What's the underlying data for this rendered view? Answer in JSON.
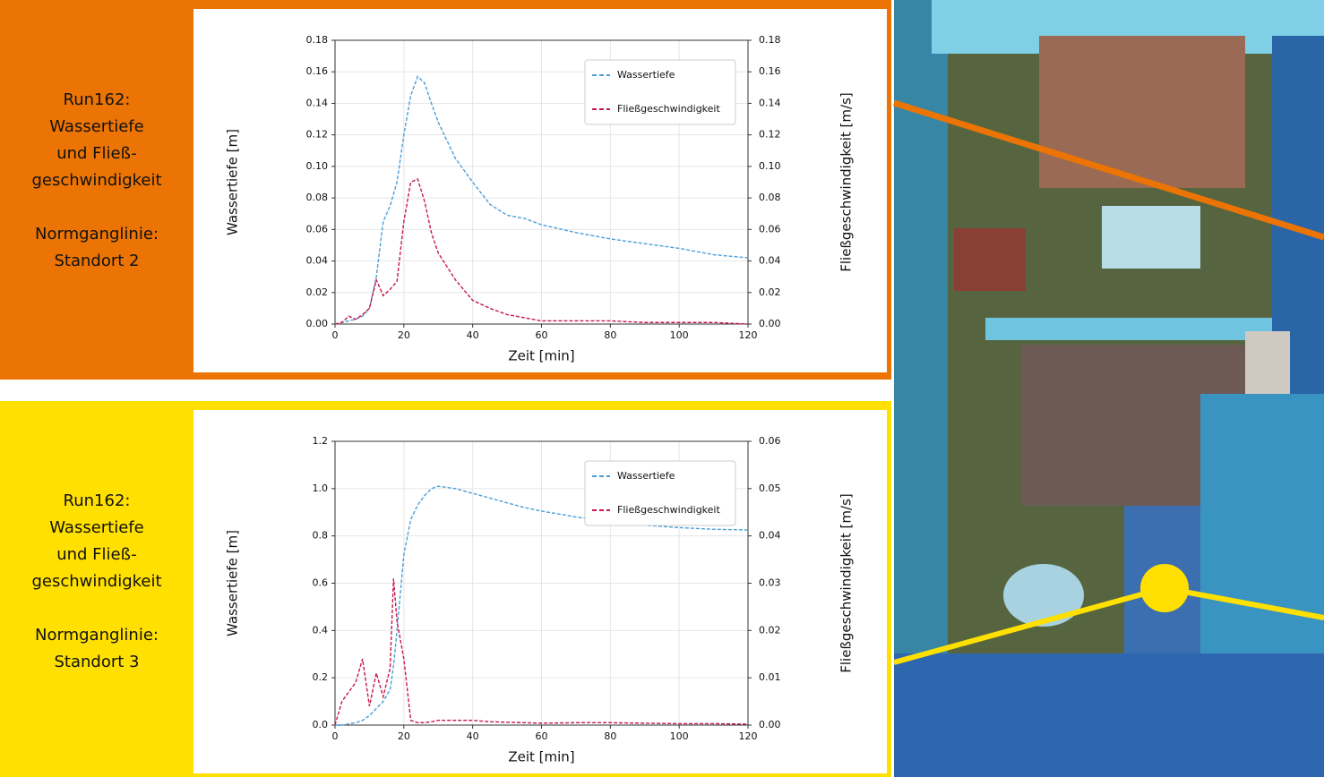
{
  "chart_data": [
    {
      "type": "line",
      "panel_title": [
        "Run162:",
        "Wassertiefe",
        "und Fließ-",
        "geschwindigkeit"
      ],
      "panel_subtitle": [
        "Normganglinie:",
        "Standort 2"
      ],
      "x_label": "Zeit [min]",
      "y_label": "Wassertiefe [m]",
      "y2_label": "Fließgeschwindigkeit [m/s]",
      "x": [
        0,
        2,
        4,
        6,
        8,
        10,
        12,
        14,
        16,
        18,
        20,
        22,
        24,
        26,
        28,
        30,
        35,
        40,
        45,
        50,
        55,
        60,
        70,
        80,
        90,
        100,
        110,
        120
      ],
      "series": [
        {
          "name": "Wassertiefe",
          "color": "#4a9fd8",
          "values": [
            0,
            0.001,
            0.002,
            0.003,
            0.005,
            0.01,
            0.03,
            0.065,
            0.075,
            0.09,
            0.12,
            0.145,
            0.157,
            0.153,
            0.14,
            0.128,
            0.105,
            0.09,
            0.076,
            0.069,
            0.067,
            0.063,
            0.058,
            0.054,
            0.051,
            0.048,
            0.044,
            0.042
          ]
        },
        {
          "name": "Fließgeschwindigkeit",
          "color": "#c8174a",
          "axis": "y2",
          "values": [
            0,
            0.001,
            0.005,
            0.003,
            0.006,
            0.01,
            0.028,
            0.018,
            0.022,
            0.027,
            0.065,
            0.09,
            0.092,
            0.078,
            0.058,
            0.045,
            0.028,
            0.015,
            0.01,
            0.006,
            0.004,
            0.002,
            0.002,
            0.002,
            0.001,
            0.001,
            0.001,
            0
          ]
        }
      ],
      "xlim": [
        0,
        120
      ],
      "xticks": [
        0,
        20,
        40,
        60,
        80,
        100,
        120
      ],
      "ylim": [
        0,
        0.18
      ],
      "yticks": [
        {
          "value": 0,
          "label": "0.00"
        },
        {
          "value": 0.02,
          "label": "0.02"
        },
        {
          "value": 0.04,
          "label": "0.04"
        },
        {
          "value": 0.06,
          "label": "0.06"
        },
        {
          "value": 0.08,
          "label": "0.08"
        },
        {
          "value": 0.1,
          "label": "0.10"
        },
        {
          "value": 0.12,
          "label": "0.12"
        },
        {
          "value": 0.14,
          "label": "0.14"
        },
        {
          "value": 0.16,
          "label": "0.16"
        },
        {
          "value": 0.18,
          "label": "0.18"
        }
      ],
      "y2lim": [
        0,
        0.18
      ],
      "y2ticks": [
        {
          "value": 0,
          "label": "0.00"
        },
        {
          "value": 0.02,
          "label": "0.02"
        },
        {
          "value": 0.04,
          "label": "0.04"
        },
        {
          "value": 0.06,
          "label": "0.06"
        },
        {
          "value": 0.08,
          "label": "0.08"
        },
        {
          "value": 0.1,
          "label": "0.10"
        },
        {
          "value": 0.12,
          "label": "0.12"
        },
        {
          "value": 0.14,
          "label": "0.14"
        },
        {
          "value": 0.16,
          "label": "0.16"
        },
        {
          "value": 0.18,
          "label": "0.18"
        }
      ],
      "grid": true,
      "legend": "upper right",
      "frame_color": "#ec7404",
      "panel_text_color": "#ffffff"
    },
    {
      "type": "line",
      "panel_title": [
        "Run162:",
        "Wassertiefe",
        "und Fließ-",
        "geschwindigkeit"
      ],
      "panel_subtitle": [
        "Normganglinie:",
        "Standort 3"
      ],
      "x_label": "Zeit [min]",
      "y_label": "Wassertiefe [m]",
      "y2_label": "Fließgeschwindigkeit [m/s]",
      "x": [
        0,
        2,
        4,
        6,
        8,
        10,
        12,
        14,
        16,
        17,
        18,
        20,
        22,
        24,
        26,
        28,
        30,
        35,
        40,
        45,
        50,
        55,
        60,
        70,
        80,
        90,
        100,
        110,
        120
      ],
      "series": [
        {
          "name": "Wassertiefe",
          "color": "#4a9fd8",
          "values": [
            0,
            0,
            0.005,
            0.01,
            0.02,
            0.04,
            0.07,
            0.1,
            0.15,
            0.25,
            0.4,
            0.72,
            0.87,
            0.93,
            0.97,
            1.0,
            1.01,
            1.0,
            0.98,
            0.96,
            0.94,
            0.92,
            0.905,
            0.88,
            0.86,
            0.845,
            0.835,
            0.828,
            0.825
          ]
        },
        {
          "name": "Fließgeschwindigkeit",
          "color": "#c8174a",
          "axis": "y2",
          "values": [
            0,
            0.005,
            0.007,
            0.009,
            0.014,
            0.004,
            0.011,
            0.006,
            0.012,
            0.031,
            0.022,
            0.014,
            0.001,
            0.0005,
            0.0005,
            0.0007,
            0.001,
            0.001,
            0.001,
            0.0007,
            0.0006,
            0.0005,
            0.0004,
            0.0005,
            0.0005,
            0.0004,
            0.0003,
            0.0003,
            0.0002
          ]
        }
      ],
      "xlim": [
        0,
        120
      ],
      "xticks": [
        0,
        20,
        40,
        60,
        80,
        100,
        120
      ],
      "ylim": [
        0,
        1.2
      ],
      "yticks": [
        {
          "value": 0,
          "label": "0.0"
        },
        {
          "value": 0.2,
          "label": "0.2"
        },
        {
          "value": 0.4,
          "label": "0.4"
        },
        {
          "value": 0.6,
          "label": "0.6"
        },
        {
          "value": 0.8,
          "label": "0.8"
        },
        {
          "value": 1,
          "label": "1.0"
        },
        {
          "value": 1.2,
          "label": "1.2"
        }
      ],
      "y2lim": [
        0,
        0.06
      ],
      "y2ticks": [
        {
          "value": 0,
          "label": "0.00"
        },
        {
          "value": 0.01,
          "label": "0.01"
        },
        {
          "value": 0.02,
          "label": "0.02"
        },
        {
          "value": 0.03,
          "label": "0.03"
        },
        {
          "value": 0.04,
          "label": "0.04"
        },
        {
          "value": 0.05,
          "label": "0.05"
        },
        {
          "value": 0.06,
          "label": "0.06"
        }
      ],
      "grid": true,
      "legend": "upper right",
      "frame_color": "#ffe000",
      "panel_text_color": "#1a1a1a"
    }
  ]
}
